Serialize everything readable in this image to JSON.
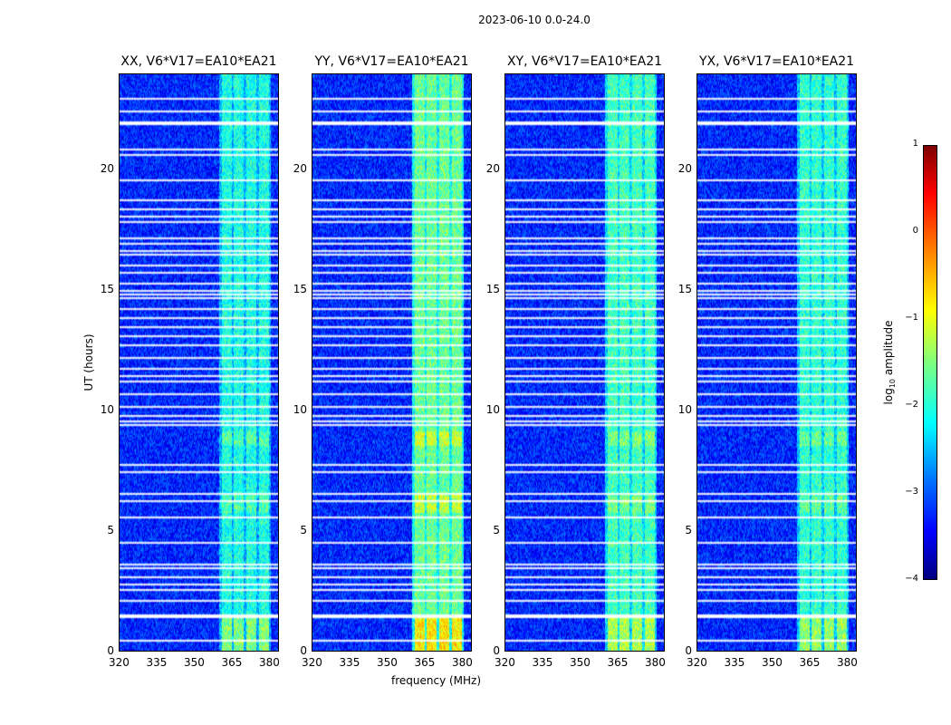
{
  "chart_data": {
    "type": "heatmap",
    "suptitle": "2023-06-10 0.0-24.0",
    "xlabel": "frequency (MHz)",
    "ylabel": "UT (hours)",
    "xlim": [
      320,
      384
    ],
    "ylim": [
      0,
      24
    ],
    "xticks": [
      320,
      335,
      350,
      365,
      380
    ],
    "yticks": [
      0,
      5,
      10,
      15,
      20
    ],
    "panels": [
      {
        "title": "XX, V6*V17=EA10*EA21",
        "band_level": -2.0
      },
      {
        "title": "YY, V6*V17=EA10*EA21",
        "band_level": -1.6
      },
      {
        "title": "XY, V6*V17=EA10*EA21",
        "band_level": -1.8
      },
      {
        "title": "YX, V6*V17=EA10*EA21",
        "band_level": -1.9
      }
    ],
    "background_level": -3.2,
    "rfi_band_MHz": [
      [
        361,
        365
      ],
      [
        366,
        370
      ],
      [
        371,
        375
      ],
      [
        376,
        380
      ]
    ],
    "flagged_UT_hours": [
      23.05,
      22.5,
      22.0,
      20.9,
      20.65,
      19.6,
      18.8,
      18.4,
      18.1,
      17.9,
      17.2,
      17.0,
      16.7,
      16.5,
      16.1,
      15.8,
      15.3,
      15.0,
      14.85,
      14.7,
      14.25,
      13.9,
      13.5,
      13.1,
      12.75,
      12.25,
      11.8,
      11.5,
      11.25,
      10.7,
      10.2,
      9.8,
      9.6,
      9.4,
      7.75,
      7.5,
      6.55,
      6.25,
      5.6,
      4.55,
      3.65,
      3.45,
      3.1,
      2.8,
      2.6,
      2.1,
      1.47,
      0.45
    ],
    "colorbar": {
      "label": "log10 amplitude",
      "label_main": "log",
      "label_sub": "10",
      "label_rest": " amplitude",
      "range": [
        -4,
        1
      ],
      "ticks": [
        "1",
        "0",
        "−1",
        "−2",
        "−3",
        "−4"
      ]
    }
  }
}
